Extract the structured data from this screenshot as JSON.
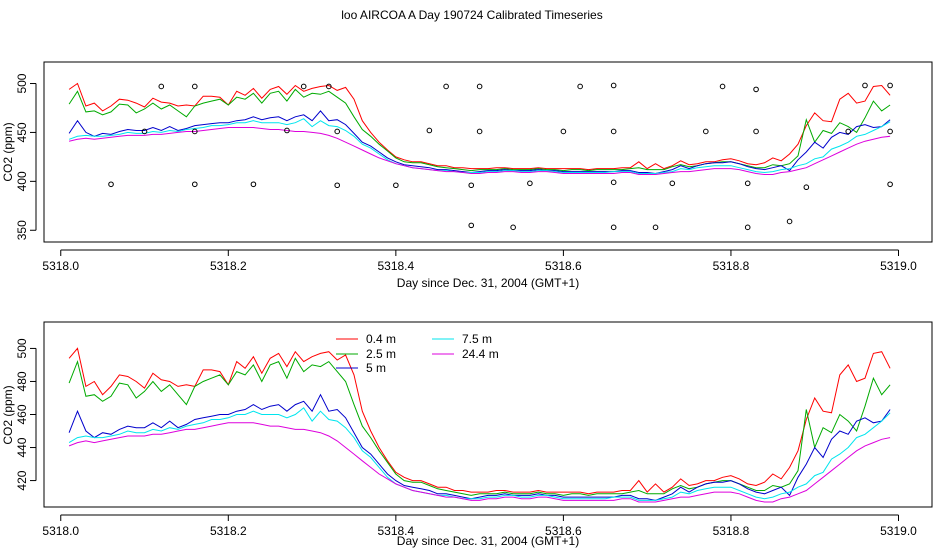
{
  "title": "loo AIRCOA A  Day 190724  Calibrated Timeseries",
  "colors": {
    "0.4 m": "#ff0000",
    "2.5 m": "#00aa00",
    "5 m": "#0000cc",
    "7.5 m": "#00e5ee",
    "24.4 m": "#dd00dd",
    "points": "#000000"
  },
  "chart_data": [
    {
      "type": "line",
      "title": "",
      "xlabel": "Day since Dec. 31, 2004 (GMT+1)",
      "ylabel": "CO2 (ppm)",
      "xlim": [
        5317.98,
        5319.04
      ],
      "ylim": [
        338,
        522
      ],
      "x_ticks": [
        "5318.0",
        "5318.2",
        "5318.4",
        "5318.6",
        "5318.8",
        "5319.0"
      ],
      "y_ticks": [
        "350",
        "400",
        "450",
        "500"
      ],
      "x_tick_values": [
        5318.0,
        5318.2,
        5318.4,
        5318.6,
        5318.8,
        5319.0
      ],
      "y_tick_values": [
        350,
        400,
        450,
        500
      ],
      "scatter_points": [
        [
          5318.06,
          397
        ],
        [
          5318.1,
          451
        ],
        [
          5318.12,
          497
        ],
        [
          5318.16,
          497
        ],
        [
          5318.16,
          397
        ],
        [
          5318.16,
          451
        ],
        [
          5318.23,
          397
        ],
        [
          5318.27,
          452
        ],
        [
          5318.29,
          497
        ],
        [
          5318.32,
          497
        ],
        [
          5318.33,
          451
        ],
        [
          5318.33,
          396
        ],
        [
          5318.4,
          396
        ],
        [
          5318.44,
          452
        ],
        [
          5318.46,
          497
        ],
        [
          5318.49,
          396
        ],
        [
          5318.49,
          355
        ],
        [
          5318.5,
          497
        ],
        [
          5318.5,
          451
        ],
        [
          5318.54,
          353
        ],
        [
          5318.56,
          398
        ],
        [
          5318.6,
          451
        ],
        [
          5318.62,
          497
        ],
        [
          5318.66,
          498
        ],
        [
          5318.66,
          451
        ],
        [
          5318.66,
          399
        ],
        [
          5318.66,
          353
        ],
        [
          5318.71,
          353
        ],
        [
          5318.73,
          398
        ],
        [
          5318.77,
          451
        ],
        [
          5318.79,
          497
        ],
        [
          5318.82,
          398
        ],
        [
          5318.82,
          353
        ],
        [
          5318.83,
          451
        ],
        [
          5318.83,
          494
        ],
        [
          5318.87,
          359
        ],
        [
          5318.89,
          394
        ],
        [
          5318.94,
          451
        ],
        [
          5318.96,
          498
        ],
        [
          5318.99,
          498
        ],
        [
          5318.99,
          451
        ],
        [
          5318.99,
          397
        ]
      ]
    },
    {
      "type": "line",
      "title": "",
      "xlabel": "Day since Dec. 31, 2004 (GMT+1)",
      "ylabel": "CO2 (ppm)",
      "xlim": [
        5317.98,
        5319.04
      ],
      "ylim": [
        404,
        516
      ],
      "x_ticks": [
        "5318.0",
        "5318.2",
        "5318.4",
        "5318.6",
        "5318.8",
        "5319.0"
      ],
      "y_ticks": [
        "420",
        "440",
        "460",
        "480",
        "500"
      ],
      "x_tick_values": [
        5318.0,
        5318.2,
        5318.4,
        5318.6,
        5318.8,
        5319.0
      ],
      "y_tick_values": [
        420,
        440,
        460,
        480,
        500
      ],
      "legend": {
        "placement": "top-left",
        "entries": [
          "0.4 m",
          "2.5 m",
          "5 m",
          "7.5 m",
          "24.4 m"
        ]
      }
    }
  ],
  "series": [
    {
      "name": "0.4 m",
      "x": [
        5318.01,
        5318.02,
        5318.03,
        5318.04,
        5318.05,
        5318.06,
        5318.07,
        5318.08,
        5318.09,
        5318.1,
        5318.11,
        5318.12,
        5318.13,
        5318.14,
        5318.15,
        5318.16,
        5318.17,
        5318.18,
        5318.19,
        5318.2,
        5318.21,
        5318.22,
        5318.23,
        5318.24,
        5318.25,
        5318.26,
        5318.27,
        5318.28,
        5318.29,
        5318.3,
        5318.31,
        5318.32,
        5318.33,
        5318.34,
        5318.35,
        5318.36,
        5318.37,
        5318.38,
        5318.39,
        5318.4,
        5318.41,
        5318.42,
        5318.43,
        5318.44,
        5318.45,
        5318.46,
        5318.47,
        5318.48,
        5318.49,
        5318.5,
        5318.51,
        5318.52,
        5318.53,
        5318.54,
        5318.55,
        5318.56,
        5318.57,
        5318.58,
        5318.59,
        5318.6,
        5318.61,
        5318.62,
        5318.63,
        5318.64,
        5318.65,
        5318.66,
        5318.67,
        5318.68,
        5318.69,
        5318.7,
        5318.71,
        5318.72,
        5318.73,
        5318.74,
        5318.75,
        5318.76,
        5318.77,
        5318.78,
        5318.79,
        5318.8,
        5318.81,
        5318.82,
        5318.83,
        5318.84,
        5318.85,
        5318.86,
        5318.87,
        5318.88,
        5318.89,
        5318.9,
        5318.91,
        5318.92,
        5318.93,
        5318.94,
        5318.95,
        5318.96,
        5318.97,
        5318.98,
        5318.99
      ],
      "values": [
        494,
        500,
        477,
        480,
        472,
        477,
        484,
        483,
        480,
        476,
        485,
        481,
        480,
        477,
        478,
        477,
        487,
        487,
        486,
        478,
        492,
        488,
        495,
        485,
        494,
        497,
        489,
        498,
        492,
        495,
        497,
        498,
        493,
        496,
        484,
        462,
        450,
        440,
        432,
        425,
        422,
        420,
        420,
        418,
        416,
        416,
        414,
        414,
        413,
        413,
        413,
        414,
        414,
        413,
        413,
        413,
        414,
        413,
        413,
        413,
        413,
        413,
        412,
        413,
        413,
        413,
        414,
        414,
        420,
        413,
        418,
        413,
        416,
        421,
        417,
        418,
        420,
        420,
        422,
        423,
        421,
        418,
        417,
        419,
        424,
        421,
        428,
        438,
        457,
        470,
        462,
        461,
        484,
        490,
        480,
        482,
        497,
        498,
        488
      ]
    },
    {
      "name": "2.5 m",
      "x": [
        5318.01,
        5318.02,
        5318.03,
        5318.04,
        5318.05,
        5318.06,
        5318.07,
        5318.08,
        5318.09,
        5318.1,
        5318.11,
        5318.12,
        5318.13,
        5318.14,
        5318.15,
        5318.16,
        5318.17,
        5318.18,
        5318.19,
        5318.2,
        5318.21,
        5318.22,
        5318.23,
        5318.24,
        5318.25,
        5318.26,
        5318.27,
        5318.28,
        5318.29,
        5318.3,
        5318.31,
        5318.32,
        5318.33,
        5318.34,
        5318.35,
        5318.36,
        5318.37,
        5318.38,
        5318.39,
        5318.4,
        5318.41,
        5318.42,
        5318.43,
        5318.44,
        5318.45,
        5318.46,
        5318.47,
        5318.48,
        5318.49,
        5318.5,
        5318.51,
        5318.52,
        5318.53,
        5318.54,
        5318.55,
        5318.56,
        5318.57,
        5318.58,
        5318.59,
        5318.6,
        5318.61,
        5318.62,
        5318.63,
        5318.64,
        5318.65,
        5318.66,
        5318.67,
        5318.68,
        5318.69,
        5318.7,
        5318.71,
        5318.72,
        5318.73,
        5318.74,
        5318.75,
        5318.76,
        5318.77,
        5318.78,
        5318.79,
        5318.8,
        5318.81,
        5318.82,
        5318.83,
        5318.84,
        5318.85,
        5318.86,
        5318.87,
        5318.88,
        5318.89,
        5318.9,
        5318.91,
        5318.92,
        5318.93,
        5318.94,
        5318.95,
        5318.96,
        5318.97,
        5318.98,
        5318.99
      ],
      "values": [
        479,
        492,
        471,
        472,
        468,
        471,
        479,
        478,
        470,
        474,
        480,
        474,
        478,
        472,
        466,
        477,
        480,
        482,
        484,
        478,
        486,
        484,
        490,
        480,
        490,
        492,
        482,
        494,
        486,
        490,
        489,
        492,
        486,
        480,
        466,
        453,
        446,
        438,
        431,
        424,
        420,
        419,
        419,
        417,
        415,
        414,
        413,
        412,
        411,
        412,
        412,
        412,
        413,
        412,
        412,
        412,
        413,
        412,
        412,
        411,
        412,
        412,
        411,
        412,
        412,
        412,
        412,
        413,
        414,
        412,
        412,
        412,
        415,
        417,
        415,
        416,
        418,
        419,
        420,
        420,
        418,
        416,
        414,
        414,
        417,
        416,
        418,
        426,
        463,
        440,
        452,
        449,
        460,
        456,
        450,
        465,
        482,
        472,
        478
      ]
    },
    {
      "name": "5 m",
      "x": [
        5318.01,
        5318.02,
        5318.03,
        5318.04,
        5318.05,
        5318.06,
        5318.07,
        5318.08,
        5318.09,
        5318.1,
        5318.11,
        5318.12,
        5318.13,
        5318.14,
        5318.15,
        5318.16,
        5318.17,
        5318.18,
        5318.19,
        5318.2,
        5318.21,
        5318.22,
        5318.23,
        5318.24,
        5318.25,
        5318.26,
        5318.27,
        5318.28,
        5318.29,
        5318.3,
        5318.31,
        5318.32,
        5318.33,
        5318.34,
        5318.35,
        5318.36,
        5318.37,
        5318.38,
        5318.39,
        5318.4,
        5318.41,
        5318.42,
        5318.43,
        5318.44,
        5318.45,
        5318.46,
        5318.47,
        5318.48,
        5318.49,
        5318.5,
        5318.51,
        5318.52,
        5318.53,
        5318.54,
        5318.55,
        5318.56,
        5318.57,
        5318.58,
        5318.59,
        5318.6,
        5318.61,
        5318.62,
        5318.63,
        5318.64,
        5318.65,
        5318.66,
        5318.67,
        5318.68,
        5318.69,
        5318.7,
        5318.71,
        5318.72,
        5318.73,
        5318.74,
        5318.75,
        5318.76,
        5318.77,
        5318.78,
        5318.79,
        5318.8,
        5318.81,
        5318.82,
        5318.83,
        5318.84,
        5318.85,
        5318.86,
        5318.87,
        5318.88,
        5318.89,
        5318.9,
        5318.91,
        5318.92,
        5318.93,
        5318.94,
        5318.95,
        5318.96,
        5318.97,
        5318.98,
        5318.99
      ],
      "values": [
        449,
        462,
        450,
        446,
        449,
        448,
        451,
        453,
        452,
        452,
        455,
        452,
        456,
        452,
        454,
        457,
        458,
        459,
        460,
        460,
        462,
        463,
        466,
        463,
        465,
        466,
        462,
        466,
        468,
        462,
        472,
        462,
        463,
        458,
        449,
        440,
        436,
        430,
        424,
        420,
        417,
        416,
        415,
        414,
        412,
        412,
        411,
        410,
        409,
        410,
        411,
        411,
        412,
        411,
        411,
        411,
        412,
        411,
        411,
        410,
        410,
        410,
        410,
        410,
        410,
        410,
        411,
        411,
        409,
        409,
        408,
        410,
        412,
        416,
        413,
        416,
        418,
        419,
        419,
        420,
        418,
        415,
        413,
        412,
        414,
        416,
        411,
        422,
        430,
        440,
        434,
        445,
        450,
        448,
        456,
        458,
        455,
        456,
        463
      ]
    },
    {
      "name": "7.5 m",
      "x": [
        5318.01,
        5318.02,
        5318.03,
        5318.04,
        5318.05,
        5318.06,
        5318.07,
        5318.08,
        5318.09,
        5318.1,
        5318.11,
        5318.12,
        5318.13,
        5318.14,
        5318.15,
        5318.16,
        5318.17,
        5318.18,
        5318.19,
        5318.2,
        5318.21,
        5318.22,
        5318.23,
        5318.24,
        5318.25,
        5318.26,
        5318.27,
        5318.28,
        5318.29,
        5318.3,
        5318.31,
        5318.32,
        5318.33,
        5318.34,
        5318.35,
        5318.36,
        5318.37,
        5318.38,
        5318.39,
        5318.4,
        5318.41,
        5318.42,
        5318.43,
        5318.44,
        5318.45,
        5318.46,
        5318.47,
        5318.48,
        5318.49,
        5318.5,
        5318.51,
        5318.52,
        5318.53,
        5318.54,
        5318.55,
        5318.56,
        5318.57,
        5318.58,
        5318.59,
        5318.6,
        5318.61,
        5318.62,
        5318.63,
        5318.64,
        5318.65,
        5318.66,
        5318.67,
        5318.68,
        5318.69,
        5318.7,
        5318.71,
        5318.72,
        5318.73,
        5318.74,
        5318.75,
        5318.76,
        5318.77,
        5318.78,
        5318.79,
        5318.8,
        5318.81,
        5318.82,
        5318.83,
        5318.84,
        5318.85,
        5318.86,
        5318.87,
        5318.88,
        5318.89,
        5318.9,
        5318.91,
        5318.92,
        5318.93,
        5318.94,
        5318.95,
        5318.96,
        5318.97,
        5318.98,
        5318.99
      ],
      "values": [
        443,
        446,
        447,
        446,
        446,
        447,
        448,
        450,
        449,
        449,
        451,
        450,
        452,
        451,
        453,
        454,
        455,
        457,
        457,
        458,
        460,
        460,
        462,
        460,
        460,
        460,
        458,
        460,
        464,
        456,
        462,
        457,
        456,
        452,
        446,
        438,
        434,
        428,
        422,
        418,
        416,
        414,
        413,
        412,
        411,
        411,
        410,
        409,
        409,
        409,
        410,
        410,
        411,
        411,
        410,
        410,
        411,
        411,
        410,
        409,
        409,
        409,
        409,
        409,
        409,
        410,
        410,
        410,
        408,
        408,
        408,
        409,
        410,
        413,
        412,
        414,
        415,
        416,
        416,
        416,
        414,
        412,
        410,
        409,
        410,
        412,
        413,
        416,
        418,
        423,
        425,
        433,
        436,
        440,
        446,
        448,
        452,
        456,
        461
      ]
    },
    {
      "name": "24.4 m",
      "x": [
        5318.01,
        5318.02,
        5318.03,
        5318.04,
        5318.05,
        5318.06,
        5318.07,
        5318.08,
        5318.09,
        5318.1,
        5318.11,
        5318.12,
        5318.13,
        5318.14,
        5318.15,
        5318.16,
        5318.17,
        5318.18,
        5318.19,
        5318.2,
        5318.21,
        5318.22,
        5318.23,
        5318.24,
        5318.25,
        5318.26,
        5318.27,
        5318.28,
        5318.29,
        5318.3,
        5318.31,
        5318.32,
        5318.33,
        5318.34,
        5318.35,
        5318.36,
        5318.37,
        5318.38,
        5318.39,
        5318.4,
        5318.41,
        5318.42,
        5318.43,
        5318.44,
        5318.45,
        5318.46,
        5318.47,
        5318.48,
        5318.49,
        5318.5,
        5318.51,
        5318.52,
        5318.53,
        5318.54,
        5318.55,
        5318.56,
        5318.57,
        5318.58,
        5318.59,
        5318.6,
        5318.61,
        5318.62,
        5318.63,
        5318.64,
        5318.65,
        5318.66,
        5318.67,
        5318.68,
        5318.69,
        5318.7,
        5318.71,
        5318.72,
        5318.73,
        5318.74,
        5318.75,
        5318.76,
        5318.77,
        5318.78,
        5318.79,
        5318.8,
        5318.81,
        5318.82,
        5318.83,
        5318.84,
        5318.85,
        5318.86,
        5318.87,
        5318.88,
        5318.89,
        5318.9,
        5318.91,
        5318.92,
        5318.93,
        5318.94,
        5318.95,
        5318.96,
        5318.97,
        5318.98,
        5318.99
      ],
      "values": [
        441,
        443,
        444,
        443,
        444,
        445,
        446,
        447,
        447,
        447,
        448,
        448,
        449,
        450,
        451,
        451,
        452,
        453,
        454,
        455,
        455,
        455,
        455,
        454,
        453,
        453,
        452,
        451,
        451,
        450,
        449,
        447,
        444,
        440,
        436,
        432,
        428,
        424,
        421,
        418,
        416,
        414,
        413,
        412,
        411,
        410,
        410,
        409,
        408,
        408,
        409,
        409,
        410,
        410,
        409,
        409,
        410,
        410,
        409,
        408,
        408,
        408,
        408,
        408,
        408,
        408,
        409,
        409,
        407,
        407,
        407,
        408,
        409,
        410,
        410,
        411,
        412,
        413,
        413,
        413,
        412,
        410,
        408,
        407,
        407,
        409,
        410,
        412,
        414,
        418,
        422,
        426,
        430,
        434,
        438,
        441,
        443,
        445,
        446
      ]
    }
  ]
}
